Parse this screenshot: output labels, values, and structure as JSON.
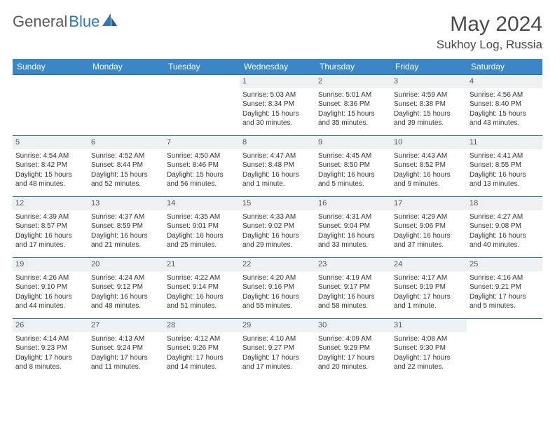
{
  "logo": {
    "text1": "General",
    "text2": "Blue"
  },
  "title": "May 2024",
  "location": "Sukhoy Log, Russia",
  "colors": {
    "header_bg": "#3b86c6",
    "header_text": "#ffffff",
    "rule": "#2f6fa8",
    "daynum_bg": "#eef1f3",
    "text": "#333333",
    "logo_gray": "#555a5e",
    "logo_blue": "#2f77bb"
  },
  "day_headers": [
    "Sunday",
    "Monday",
    "Tuesday",
    "Wednesday",
    "Thursday",
    "Friday",
    "Saturday"
  ],
  "weeks": [
    [
      {
        "empty": true
      },
      {
        "empty": true
      },
      {
        "empty": true
      },
      {
        "n": "1",
        "sr": "5:03 AM",
        "ss": "8:34 PM",
        "dl": "15 hours and 30 minutes."
      },
      {
        "n": "2",
        "sr": "5:01 AM",
        "ss": "8:36 PM",
        "dl": "15 hours and 35 minutes."
      },
      {
        "n": "3",
        "sr": "4:59 AM",
        "ss": "8:38 PM",
        "dl": "15 hours and 39 minutes."
      },
      {
        "n": "4",
        "sr": "4:56 AM",
        "ss": "8:40 PM",
        "dl": "15 hours and 43 minutes."
      }
    ],
    [
      {
        "n": "5",
        "sr": "4:54 AM",
        "ss": "8:42 PM",
        "dl": "15 hours and 48 minutes."
      },
      {
        "n": "6",
        "sr": "4:52 AM",
        "ss": "8:44 PM",
        "dl": "15 hours and 52 minutes."
      },
      {
        "n": "7",
        "sr": "4:50 AM",
        "ss": "8:46 PM",
        "dl": "15 hours and 56 minutes."
      },
      {
        "n": "8",
        "sr": "4:47 AM",
        "ss": "8:48 PM",
        "dl": "16 hours and 1 minute."
      },
      {
        "n": "9",
        "sr": "4:45 AM",
        "ss": "8:50 PM",
        "dl": "16 hours and 5 minutes."
      },
      {
        "n": "10",
        "sr": "4:43 AM",
        "ss": "8:52 PM",
        "dl": "16 hours and 9 minutes."
      },
      {
        "n": "11",
        "sr": "4:41 AM",
        "ss": "8:55 PM",
        "dl": "16 hours and 13 minutes."
      }
    ],
    [
      {
        "n": "12",
        "sr": "4:39 AM",
        "ss": "8:57 PM",
        "dl": "16 hours and 17 minutes."
      },
      {
        "n": "13",
        "sr": "4:37 AM",
        "ss": "8:59 PM",
        "dl": "16 hours and 21 minutes."
      },
      {
        "n": "14",
        "sr": "4:35 AM",
        "ss": "9:01 PM",
        "dl": "16 hours and 25 minutes."
      },
      {
        "n": "15",
        "sr": "4:33 AM",
        "ss": "9:02 PM",
        "dl": "16 hours and 29 minutes."
      },
      {
        "n": "16",
        "sr": "4:31 AM",
        "ss": "9:04 PM",
        "dl": "16 hours and 33 minutes."
      },
      {
        "n": "17",
        "sr": "4:29 AM",
        "ss": "9:06 PM",
        "dl": "16 hours and 37 minutes."
      },
      {
        "n": "18",
        "sr": "4:27 AM",
        "ss": "9:08 PM",
        "dl": "16 hours and 40 minutes."
      }
    ],
    [
      {
        "n": "19",
        "sr": "4:26 AM",
        "ss": "9:10 PM",
        "dl": "16 hours and 44 minutes."
      },
      {
        "n": "20",
        "sr": "4:24 AM",
        "ss": "9:12 PM",
        "dl": "16 hours and 48 minutes."
      },
      {
        "n": "21",
        "sr": "4:22 AM",
        "ss": "9:14 PM",
        "dl": "16 hours and 51 minutes."
      },
      {
        "n": "22",
        "sr": "4:20 AM",
        "ss": "9:16 PM",
        "dl": "16 hours and 55 minutes."
      },
      {
        "n": "23",
        "sr": "4:19 AM",
        "ss": "9:17 PM",
        "dl": "16 hours and 58 minutes."
      },
      {
        "n": "24",
        "sr": "4:17 AM",
        "ss": "9:19 PM",
        "dl": "17 hours and 1 minute."
      },
      {
        "n": "25",
        "sr": "4:16 AM",
        "ss": "9:21 PM",
        "dl": "17 hours and 5 minutes."
      }
    ],
    [
      {
        "n": "26",
        "sr": "4:14 AM",
        "ss": "9:23 PM",
        "dl": "17 hours and 8 minutes."
      },
      {
        "n": "27",
        "sr": "4:13 AM",
        "ss": "9:24 PM",
        "dl": "17 hours and 11 minutes."
      },
      {
        "n": "28",
        "sr": "4:12 AM",
        "ss": "9:26 PM",
        "dl": "17 hours and 14 minutes."
      },
      {
        "n": "29",
        "sr": "4:10 AM",
        "ss": "9:27 PM",
        "dl": "17 hours and 17 minutes."
      },
      {
        "n": "30",
        "sr": "4:09 AM",
        "ss": "9:29 PM",
        "dl": "17 hours and 20 minutes."
      },
      {
        "n": "31",
        "sr": "4:08 AM",
        "ss": "9:30 PM",
        "dl": "17 hours and 22 minutes."
      },
      {
        "empty": true
      }
    ]
  ],
  "labels": {
    "sunrise": "Sunrise: ",
    "sunset": "Sunset: ",
    "daylight": "Daylight: "
  }
}
